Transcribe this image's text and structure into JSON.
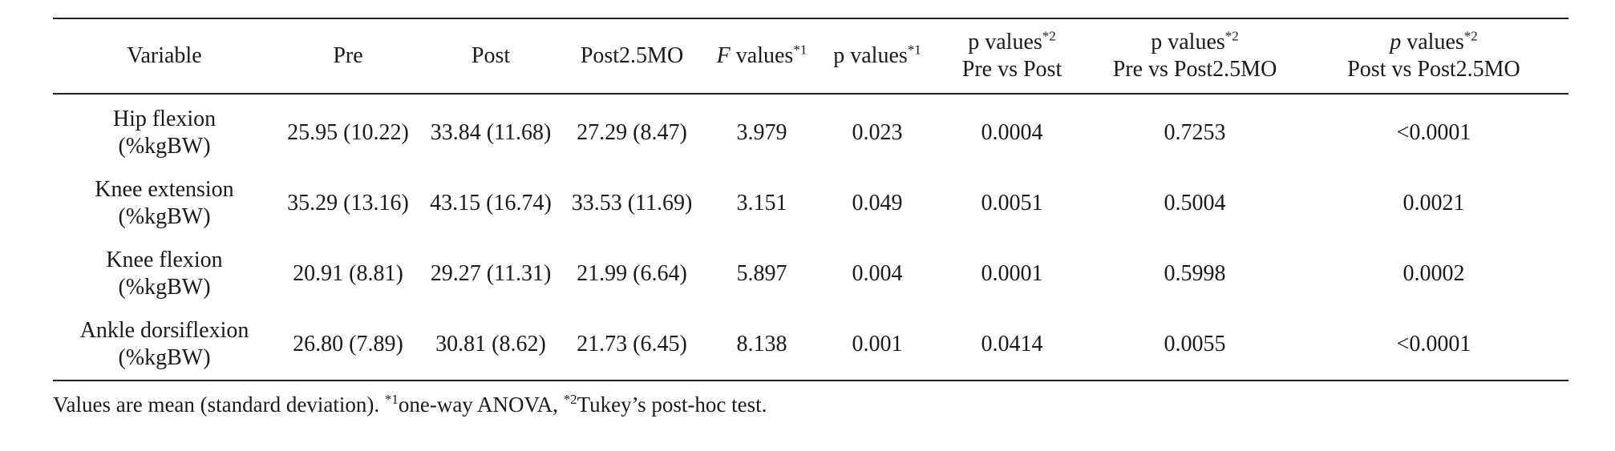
{
  "table": {
    "headers": {
      "variable": "Variable",
      "pre": "Pre",
      "post": "Post",
      "post25mo": "Post2.5MO",
      "f_values": {
        "italic": "F",
        "text": " values",
        "sup": "*1"
      },
      "p_values": {
        "text": "p values",
        "sup": "*1"
      },
      "p_pre_post": {
        "text": "p values",
        "sup": "*2",
        "sub": "Pre vs Post"
      },
      "p_pre_post25": {
        "text": "p values",
        "sup": "*2",
        "sub": "Pre vs Post2.5MO"
      },
      "p_post_post25": {
        "italic": "p",
        "text": " values",
        "sup": "*2",
        "sub": "Post vs Post2.5MO"
      }
    },
    "rows": [
      {
        "variable": "Hip flexion",
        "unit": "(%kgBW)",
        "pre": "25.95 (10.22)",
        "post": "33.84 (11.68)",
        "post25mo": "27.29 (8.47)",
        "f": "3.979",
        "p": "0.023",
        "p_pre_post": "0.0004",
        "p_pre_post25": "0.7253",
        "p_post_post25": "<0.0001"
      },
      {
        "variable": "Knee extension",
        "unit": "(%kgBW)",
        "pre": "35.29 (13.16)",
        "post": "43.15 (16.74)",
        "post25mo": "33.53 (11.69)",
        "f": "3.151",
        "p": "0.049",
        "p_pre_post": "0.0051",
        "p_pre_post25": "0.5004",
        "p_post_post25": "0.0021"
      },
      {
        "variable": "Knee flexion",
        "unit": "(%kgBW)",
        "pre": "20.91 (8.81)",
        "post": "29.27 (11.31)",
        "post25mo": "21.99 (6.64)",
        "f": "5.897",
        "p": "0.004",
        "p_pre_post": "0.0001",
        "p_pre_post25": "0.5998",
        "p_post_post25": "0.0002"
      },
      {
        "variable": "Ankle dorsiflexion",
        "unit": "(%kgBW)",
        "pre": "26.80 (7.89)",
        "post": "30.81 (8.62)",
        "post25mo": "21.73 (6.45)",
        "f": "8.138",
        "p": "0.001",
        "p_pre_post": "0.0414",
        "p_pre_post25": "0.0055",
        "p_post_post25": "<0.0001"
      }
    ]
  },
  "footnote": {
    "text1": "Values are mean (standard deviation). ",
    "sup1": "*1",
    "text2": "one-way ANOVA, ",
    "sup2": "*2",
    "text3": "Tukey’s post-hoc test."
  }
}
